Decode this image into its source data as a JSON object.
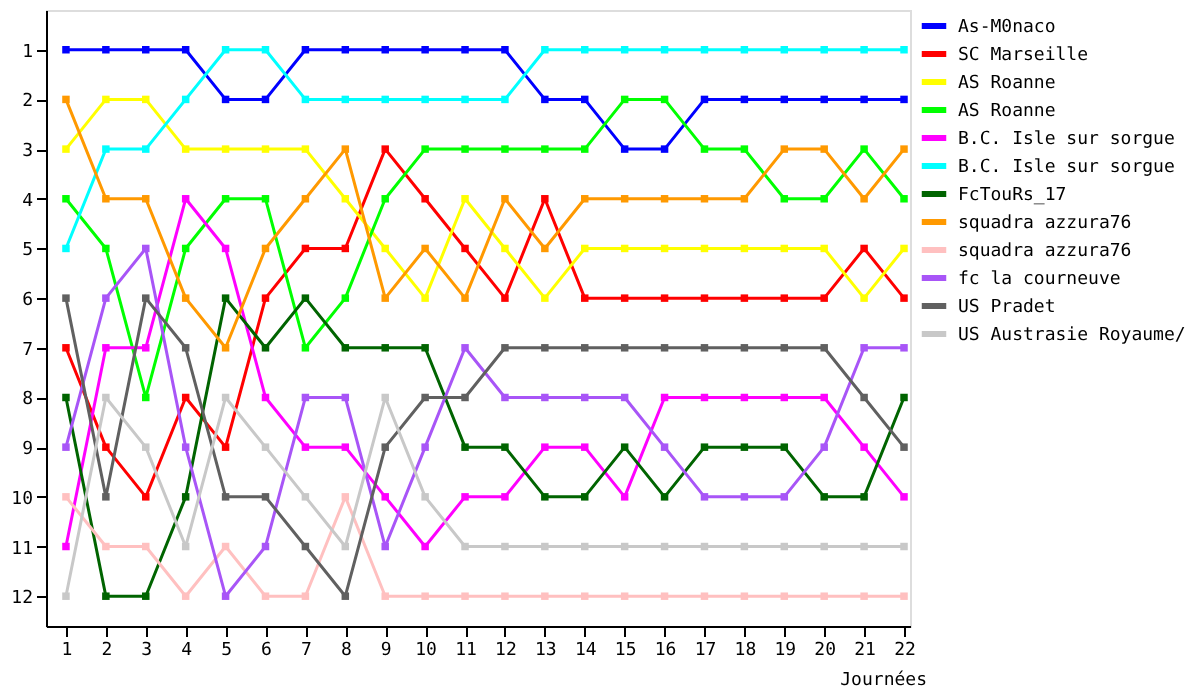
{
  "chart_data": {
    "type": "line",
    "xlabel": "Journées",
    "x": [
      1,
      2,
      3,
      4,
      5,
      6,
      7,
      8,
      9,
      10,
      11,
      12,
      13,
      14,
      15,
      16,
      17,
      18,
      19,
      20,
      21,
      22
    ],
    "xlim": [
      0.5,
      22.15
    ],
    "xticks": [
      1,
      2,
      3,
      4,
      5,
      6,
      7,
      8,
      9,
      10,
      11,
      12,
      13,
      14,
      15,
      16,
      17,
      18,
      19,
      20,
      21,
      22
    ],
    "ylim": [
      12.6,
      0.2
    ],
    "yticks": [
      1,
      2,
      3,
      4,
      5,
      6,
      7,
      8,
      9,
      10,
      11,
      12
    ],
    "grid": false,
    "legend": "right",
    "marker": "square",
    "line_style": "solid",
    "series": [
      {
        "name": "As-M0naco",
        "color": "#0000ff",
        "values": [
          1,
          1,
          1,
          1,
          2,
          2,
          1,
          1,
          1,
          1,
          1,
          1,
          2,
          2,
          3,
          3,
          2,
          2,
          2,
          2,
          2,
          2
        ]
      },
      {
        "name": "SC Marseille",
        "color": "#ff0000",
        "values": [
          7,
          9,
          10,
          8,
          9,
          6,
          5,
          5,
          3,
          4,
          5,
          6,
          4,
          6,
          6,
          6,
          6,
          6,
          6,
          6,
          5,
          6
        ]
      },
      {
        "name": "AS Roanne",
        "color": "#ffff00",
        "values": [
          3,
          2,
          2,
          3,
          3,
          3,
          3,
          4,
          5,
          6,
          4,
          5,
          6,
          5,
          5,
          5,
          5,
          5,
          5,
          5,
          6,
          5
        ]
      },
      {
        "name": "AS Roanne",
        "color": "#00ff00",
        "values": [
          4,
          5,
          8,
          5,
          4,
          4,
          7,
          6,
          4,
          3,
          3,
          3,
          3,
          3,
          2,
          2,
          3,
          3,
          4,
          4,
          3,
          4
        ]
      },
      {
        "name": "B.C. Isle sur sorgue",
        "color": "#ff00ff",
        "values": [
          11,
          7,
          7,
          4,
          5,
          8,
          9,
          9,
          10,
          11,
          10,
          10,
          9,
          9,
          10,
          8,
          8,
          8,
          8,
          8,
          9,
          10
        ]
      },
      {
        "name": "B.C. Isle sur sorgue",
        "color": "#00ffff",
        "values": [
          5,
          3,
          3,
          2,
          1,
          1,
          2,
          2,
          2,
          2,
          2,
          2,
          1,
          1,
          1,
          1,
          1,
          1,
          1,
          1,
          1,
          1
        ]
      },
      {
        "name": "FcTouRs_17",
        "color": "#006400",
        "values": [
          8,
          12,
          12,
          10,
          6,
          7,
          6,
          7,
          7,
          7,
          9,
          9,
          10,
          10,
          9,
          10,
          9,
          9,
          9,
          10,
          10,
          8
        ]
      },
      {
        "name": "squadra azzura76",
        "color": "#ff9900",
        "values": [
          2,
          4,
          4,
          6,
          7,
          5,
          4,
          3,
          6,
          5,
          6,
          4,
          5,
          4,
          4,
          4,
          4,
          4,
          3,
          3,
          4,
          3
        ]
      },
      {
        "name": "squadra azzura76",
        "color": "#ffc0c0",
        "values": [
          10,
          11,
          11,
          12,
          11,
          12,
          12,
          10,
          12,
          12,
          12,
          12,
          12,
          12,
          12,
          12,
          12,
          12,
          12,
          12,
          12,
          12
        ]
      },
      {
        "name": "fc la courneuve",
        "color": "#a855f7",
        "values": [
          9,
          6,
          5,
          9,
          12,
          11,
          8,
          8,
          11,
          9,
          7,
          8,
          8,
          8,
          8,
          9,
          10,
          10,
          10,
          9,
          7,
          7
        ]
      },
      {
        "name": "US Pradet",
        "color": "#606060",
        "values": [
          6,
          10,
          6,
          7,
          10,
          10,
          11,
          12,
          9,
          8,
          8,
          7,
          7,
          7,
          7,
          7,
          7,
          7,
          7,
          7,
          8,
          9
        ]
      },
      {
        "name": "US Austrasie Royaume/",
        "color": "#c8c8c8",
        "values": [
          12,
          8,
          9,
          11,
          8,
          9,
          10,
          11,
          8,
          10,
          11,
          11,
          11,
          11,
          11,
          11,
          11,
          11,
          11,
          11,
          11,
          11
        ]
      }
    ]
  }
}
